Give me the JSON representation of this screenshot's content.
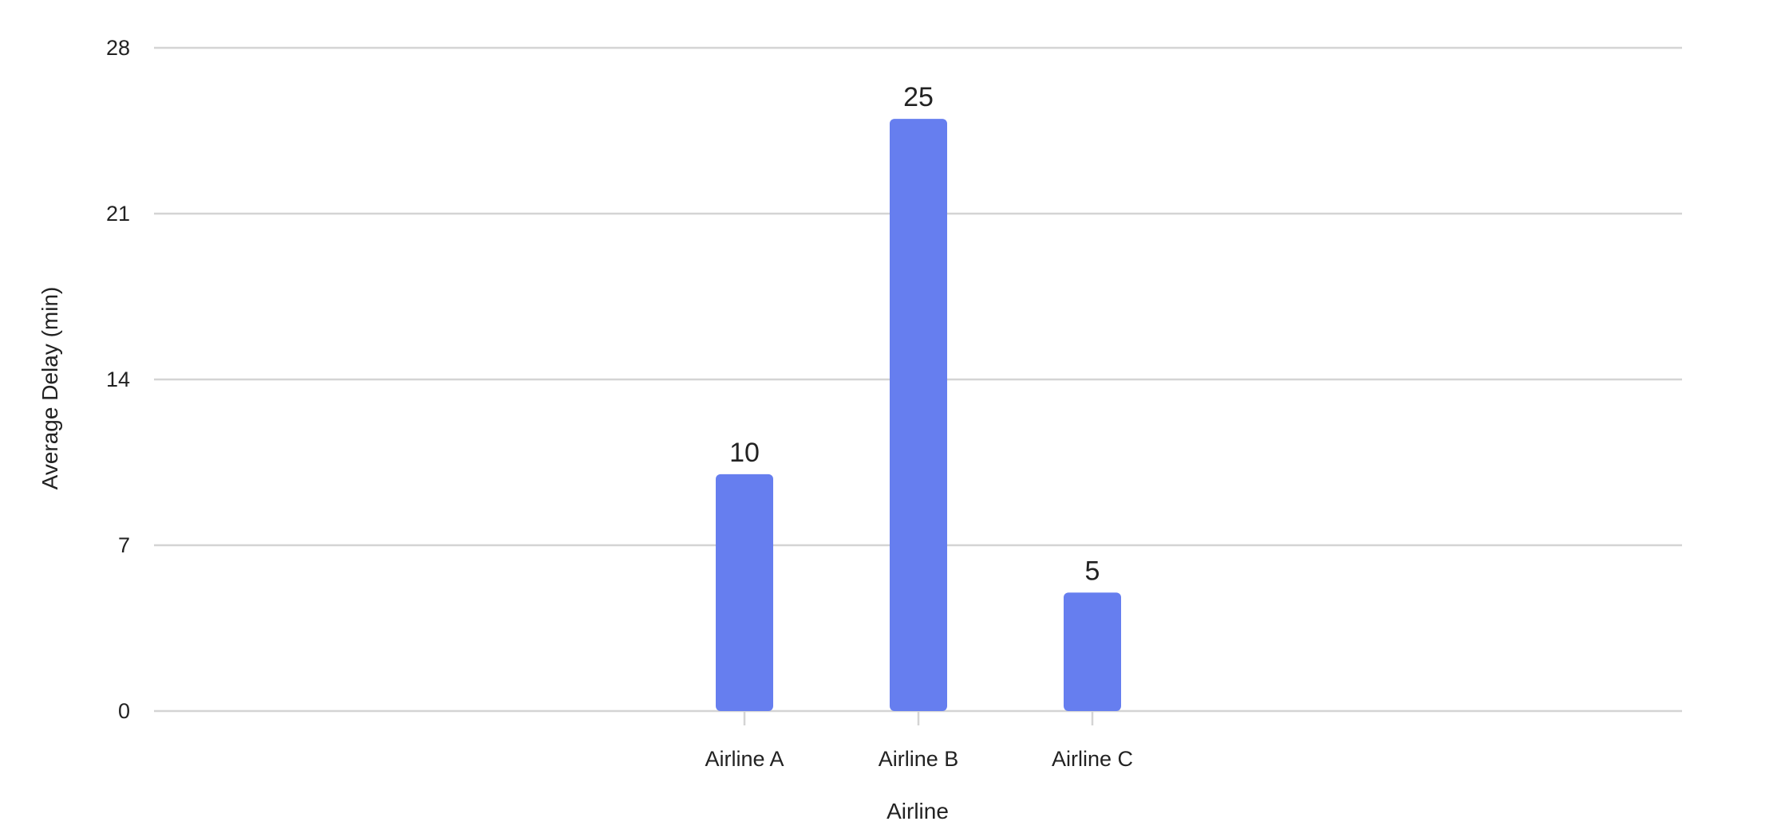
{
  "colors": {
    "bar": "#667eef",
    "grid": "#d4d4d4",
    "text": "#222222"
  },
  "chart_data": {
    "type": "bar",
    "title": "",
    "xlabel": "Airline",
    "ylabel": "Average Delay (min)",
    "categories": [
      "Airline A",
      "Airline B",
      "Airline C"
    ],
    "values": [
      10,
      25,
      5
    ],
    "data_labels": [
      "10",
      "25",
      "5"
    ],
    "ylim": [
      0,
      28
    ],
    "yticks": [
      0,
      7,
      14,
      21,
      28
    ],
    "grid": true,
    "legend": "none"
  }
}
